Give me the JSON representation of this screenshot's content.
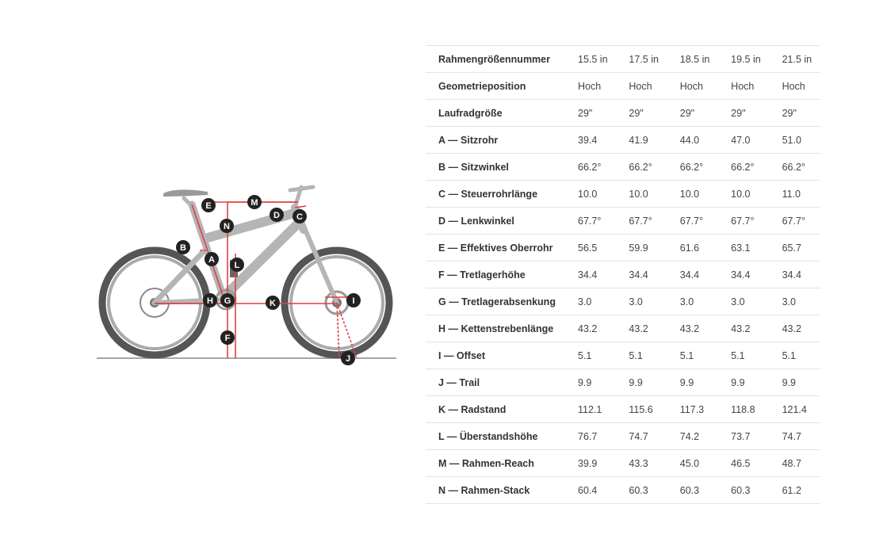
{
  "diagram": {
    "markers": [
      "A",
      "B",
      "C",
      "D",
      "E",
      "F",
      "G",
      "H",
      "I",
      "J",
      "K",
      "L",
      "M",
      "N"
    ]
  },
  "table": {
    "rows": [
      {
        "label": "Rahmengrößennummer",
        "values": [
          "15.5 in",
          "17.5 in",
          "18.5 in",
          "19.5 in",
          "21.5 in"
        ]
      },
      {
        "label": "Geometrieposition",
        "values": [
          "Hoch",
          "Hoch",
          "Hoch",
          "Hoch",
          "Hoch"
        ]
      },
      {
        "label": "Laufradgröße",
        "values": [
          "29\"",
          "29\"",
          "29\"",
          "29\"",
          "29\""
        ]
      },
      {
        "label": "A — Sitzrohr",
        "values": [
          "39.4",
          "41.9",
          "44.0",
          "47.0",
          "51.0"
        ]
      },
      {
        "label": "B — Sitzwinkel",
        "values": [
          "66.2°",
          "66.2°",
          "66.2°",
          "66.2°",
          "66.2°"
        ]
      },
      {
        "label": "C — Steuerrohrlänge",
        "values": [
          "10.0",
          "10.0",
          "10.0",
          "10.0",
          "11.0"
        ]
      },
      {
        "label": "D — Lenkwinkel",
        "values": [
          "67.7°",
          "67.7°",
          "67.7°",
          "67.7°",
          "67.7°"
        ]
      },
      {
        "label": "E — Effektives Oberrohr",
        "values": [
          "56.5",
          "59.9",
          "61.6",
          "63.1",
          "65.7"
        ]
      },
      {
        "label": "F — Tretlagerhöhe",
        "values": [
          "34.4",
          "34.4",
          "34.4",
          "34.4",
          "34.4"
        ]
      },
      {
        "label": "G — Tretlagerabsenkung",
        "values": [
          "3.0",
          "3.0",
          "3.0",
          "3.0",
          "3.0"
        ]
      },
      {
        "label": "H — Kettenstrebenlänge",
        "values": [
          "43.2",
          "43.2",
          "43.2",
          "43.2",
          "43.2"
        ]
      },
      {
        "label": "I — Offset",
        "values": [
          "5.1",
          "5.1",
          "5.1",
          "5.1",
          "5.1"
        ]
      },
      {
        "label": "J — Trail",
        "values": [
          "9.9",
          "9.9",
          "9.9",
          "9.9",
          "9.9"
        ]
      },
      {
        "label": "K — Radstand",
        "values": [
          "112.1",
          "115.6",
          "117.3",
          "118.8",
          "121.4"
        ]
      },
      {
        "label": "L — Überstandshöhe",
        "values": [
          "76.7",
          "74.7",
          "74.2",
          "73.7",
          "74.7"
        ]
      },
      {
        "label": "M — Rahmen-Reach",
        "values": [
          "39.9",
          "43.3",
          "45.0",
          "46.5",
          "48.7"
        ]
      },
      {
        "label": "N — Rahmen-Stack",
        "values": [
          "60.4",
          "60.3",
          "60.3",
          "60.3",
          "61.2"
        ]
      }
    ]
  }
}
